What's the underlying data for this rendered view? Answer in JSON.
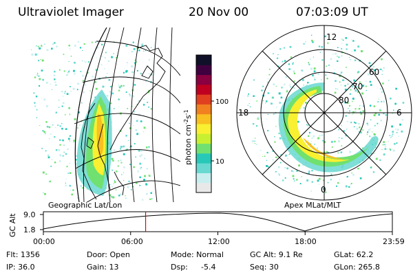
{
  "header": {
    "instrument": "Ultraviolet Imager",
    "date": "20 Nov 00",
    "time": "07:03:09 UT"
  },
  "left_panel": {
    "label": "Geographic Lat/Lon"
  },
  "right_panel": {
    "label": "Apex MLat/MLT",
    "mlt_labels": [
      "12",
      "18",
      "6",
      "0"
    ],
    "lat_labels": [
      "60",
      "70",
      "80"
    ]
  },
  "colorbar": {
    "unit_label": "photon cm",
    "unit_exp1": "-2",
    "unit_s": "s",
    "unit_exp2": "-1",
    "ticks": [
      "100",
      "10"
    ],
    "colors": [
      "#e8e8e8",
      "#c8eef0",
      "#68d8d0",
      "#28c8b8",
      "#70e070",
      "#c8f030",
      "#f8f030",
      "#f8c020",
      "#f08020",
      "#e04020",
      "#c00020",
      "#8a0040",
      "#400040",
      "#101028"
    ]
  },
  "timeline": {
    "ylabel": "GC Alt",
    "yticks": [
      "9.0",
      "1.8"
    ],
    "xticks": [
      "00:00",
      "06:00",
      "12:00",
      "18:00",
      "23:59"
    ],
    "marker_fraction": 0.293,
    "marker_color": "#e00000"
  },
  "status": {
    "flt": "Flt: 1356",
    "ip": "IP: 36.0",
    "door": "Door: Open",
    "gain": "Gain: 13",
    "mode": "Mode: Normal",
    "dsp_label": "Dsp:",
    "dsp_value": "-5.4",
    "gcalt": "GC Alt: 9.1 Re",
    "seq": "Seq: 30",
    "glat": "GLat:  62.2",
    "glon": "GLon: 265.8"
  }
}
